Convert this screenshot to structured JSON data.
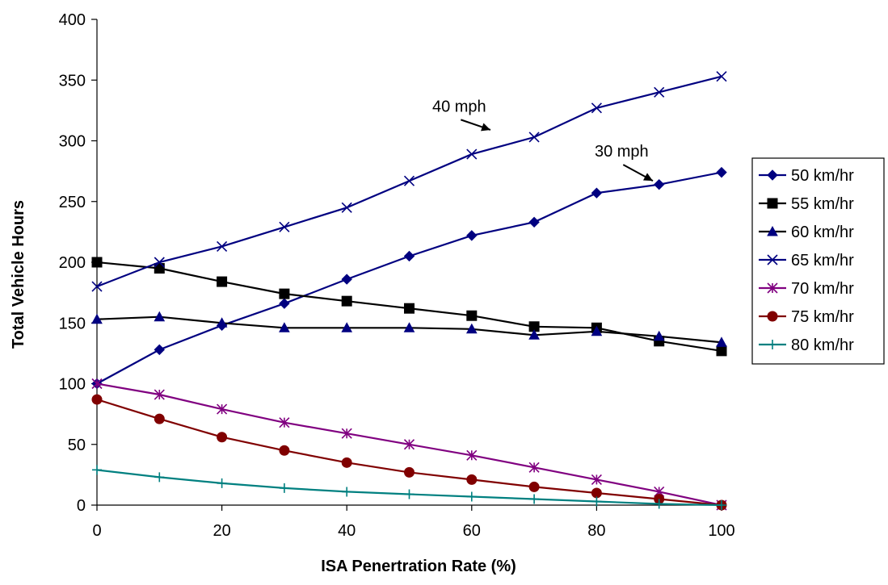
{
  "chart_data": {
    "type": "line",
    "title": "",
    "xlabel": "ISA Penertration Rate (%)",
    "ylabel": "Total Vehicle Hours",
    "xlim": [
      0,
      100
    ],
    "ylim": [
      0,
      400
    ],
    "x_ticks": [
      "0",
      "20",
      "40",
      "60",
      "80",
      "100"
    ],
    "y_ticks": [
      "0",
      "50",
      "100",
      "150",
      "200",
      "250",
      "300",
      "350",
      "400"
    ],
    "grid": false,
    "legend_position": "right",
    "x": [
      0,
      10,
      20,
      30,
      40,
      50,
      60,
      70,
      80,
      90,
      100
    ],
    "series": [
      {
        "name": "50 km/hr",
        "color": "#000080",
        "marker": "diamond",
        "values": [
          100,
          128,
          148,
          166,
          186,
          205,
          222,
          233,
          257,
          264,
          274
        ]
      },
      {
        "name": "55 km/hr",
        "color": "#000000",
        "marker": "square",
        "values": [
          200,
          195,
          184,
          174,
          168,
          162,
          156,
          147,
          146,
          135,
          127
        ]
      },
      {
        "name": "60 km/hr",
        "color": "#000000",
        "marker": "triangle",
        "marker_color": "#000080",
        "values": [
          153,
          155,
          150,
          146,
          146,
          146,
          145,
          140,
          143,
          139,
          134
        ]
      },
      {
        "name": "65 km/hr",
        "color": "#000080",
        "marker": "x",
        "values": [
          180,
          200,
          213,
          229,
          245,
          267,
          289,
          303,
          327,
          340,
          353
        ]
      },
      {
        "name": "70 km/hr",
        "color": "#800080",
        "marker": "star",
        "values": [
          100,
          91,
          79,
          68,
          59,
          50,
          41,
          31,
          21,
          11,
          0
        ]
      },
      {
        "name": "75 km/hr",
        "color": "#800000",
        "marker": "circle",
        "values": [
          87,
          71,
          56,
          45,
          35,
          27,
          21,
          15,
          10,
          5,
          0
        ]
      },
      {
        "name": "80 km/hr",
        "color": "#008080",
        "marker": "plus",
        "values": [
          29,
          23,
          18,
          14,
          11,
          9,
          7,
          5,
          3,
          1,
          0
        ]
      }
    ],
    "annotations": [
      {
        "text": "40 mph",
        "x": 58,
        "y": 324,
        "arrow_to": [
          63,
          309
        ]
      },
      {
        "text": "30 mph",
        "x": 84,
        "y": 287,
        "arrow_to": [
          89,
          267
        ]
      }
    ]
  }
}
